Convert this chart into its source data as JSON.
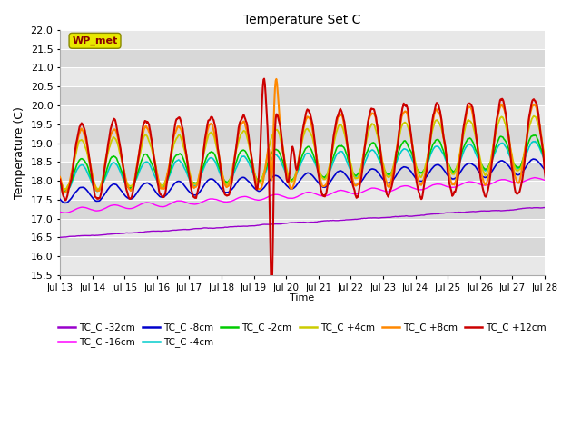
{
  "title": "Temperature Set C",
  "xlabel": "Time",
  "ylabel": "Temperature (C)",
  "ylim": [
    15.5,
    22.0
  ],
  "yticks": [
    15.5,
    16.0,
    16.5,
    17.0,
    17.5,
    18.0,
    18.5,
    19.0,
    19.5,
    20.0,
    20.5,
    21.0,
    21.5,
    22.0
  ],
  "xtick_days": [
    13,
    14,
    15,
    16,
    17,
    18,
    19,
    20,
    21,
    22,
    23,
    24,
    25,
    26,
    27,
    28
  ],
  "legend_entries": [
    {
      "label": "TC_C -32cm",
      "color": "#9900cc"
    },
    {
      "label": "TC_C -16cm",
      "color": "#ff00ff"
    },
    {
      "label": "TC_C -8cm",
      "color": "#0000cc"
    },
    {
      "label": "TC_C -4cm",
      "color": "#00cccc"
    },
    {
      "label": "TC_C -2cm",
      "color": "#00cc00"
    },
    {
      "label": "TC_C +4cm",
      "color": "#cccc00"
    },
    {
      "label": "TC_C +8cm",
      "color": "#ff8800"
    },
    {
      "label": "TC_C +12cm",
      "color": "#cc0000"
    }
  ],
  "wp_met_box_facecolor": "#e8e800",
  "wp_met_box_edgecolor": "#888800",
  "wp_met_text_color": "#880000",
  "bg_band_colors": [
    "#e8e8e8",
    "#d8d8d8"
  ],
  "plot_bg_color": "#e8e8e8"
}
